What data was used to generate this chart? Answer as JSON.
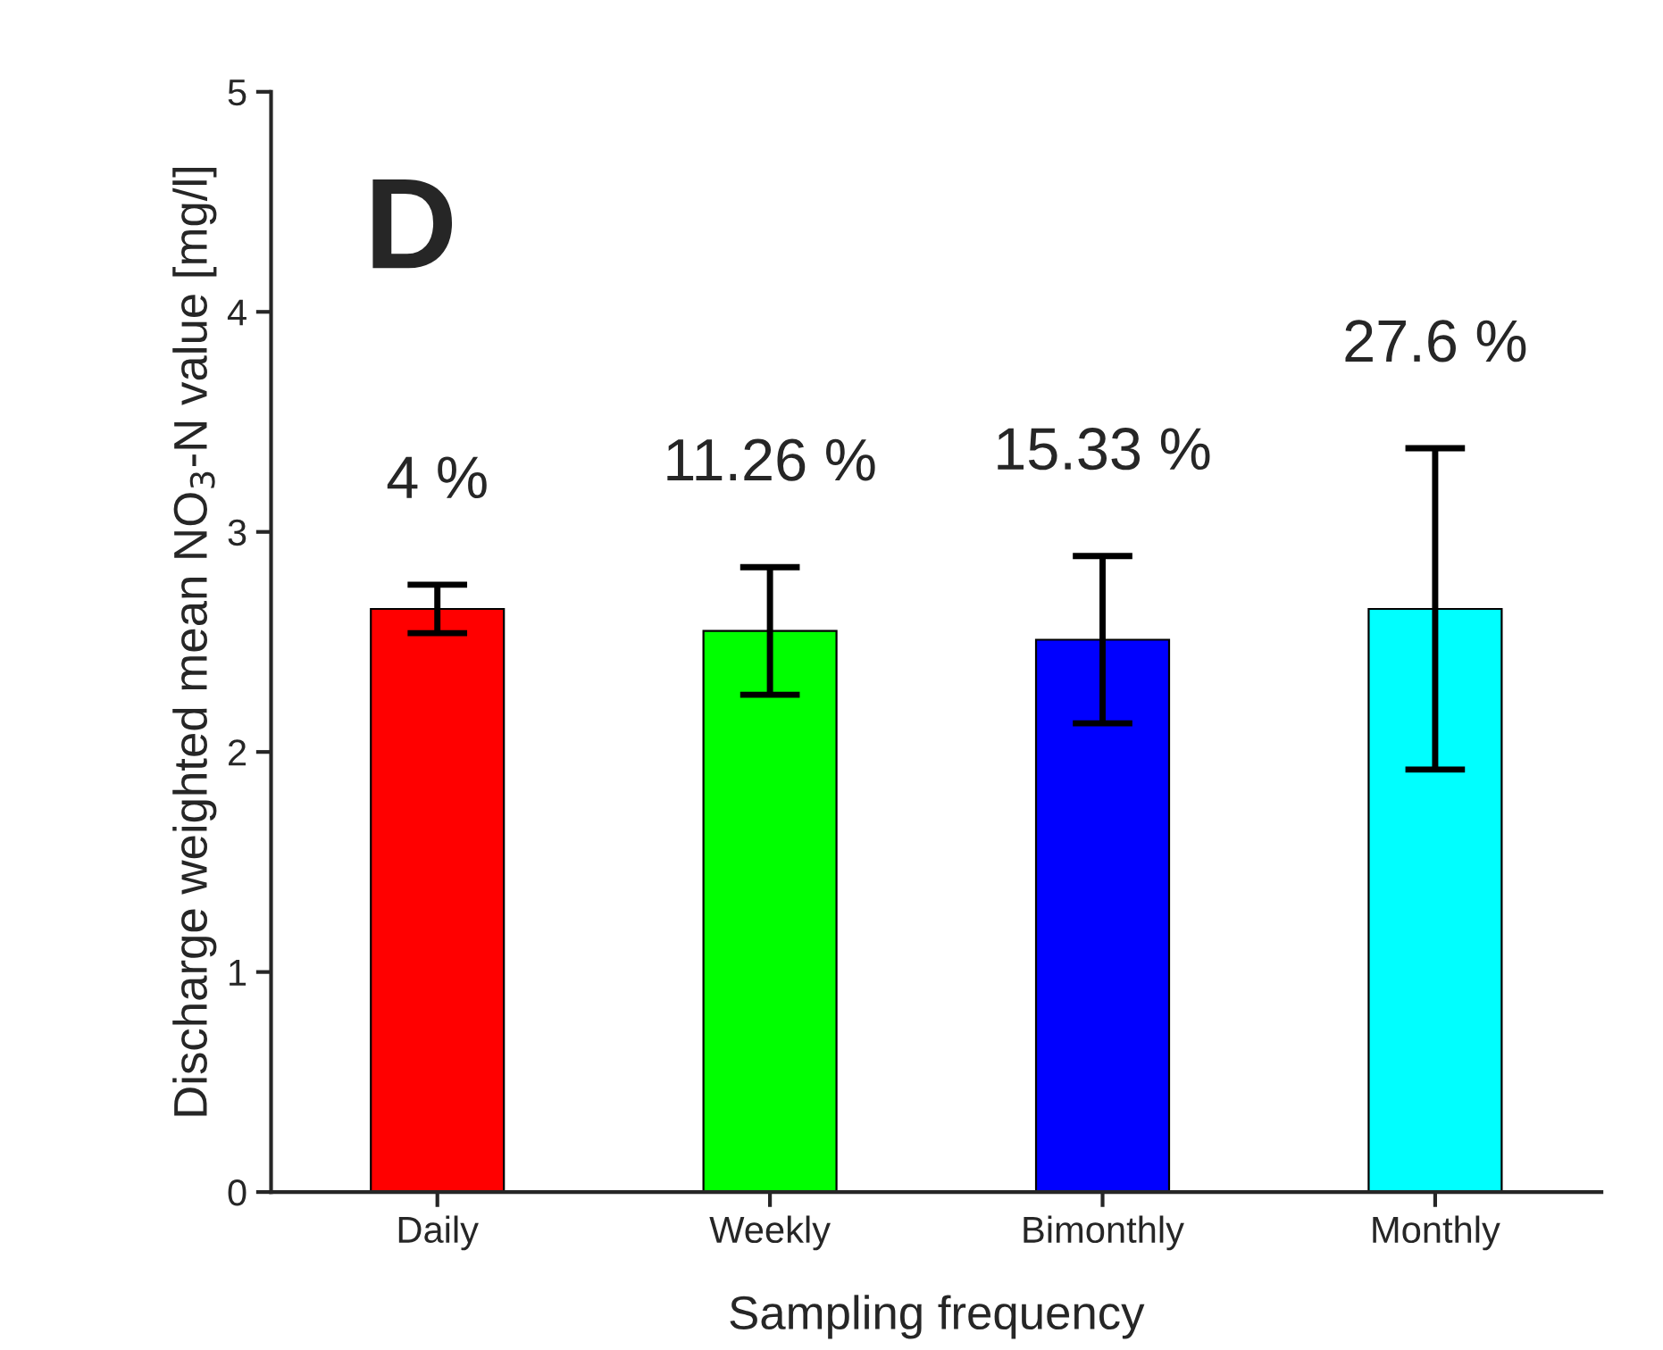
{
  "chart_data": {
    "type": "bar",
    "xlabel": "Sampling frequency",
    "ylabel": "Discharge weighted mean NO$_{3}$-N value [mg/l]",
    "categories": [
      "Daily",
      "Weekly",
      "Bimonthly",
      "Monthly"
    ],
    "values": [
      2.65,
      2.55,
      2.51,
      2.65
    ],
    "colors": [
      "#ff0000",
      "#00ff00",
      "#0000ff",
      "#00ffff"
    ],
    "errors": [
      0.11,
      0.29,
      0.38,
      0.73
    ],
    "ylim": [
      0,
      5
    ],
    "yticks": [
      0,
      1,
      2,
      3,
      4,
      5
    ],
    "grid": false,
    "legend": false,
    "annotations": [
      "4 %",
      "11.26 %",
      "15.33 %",
      "27.6 %",
      "D"
    ]
  }
}
